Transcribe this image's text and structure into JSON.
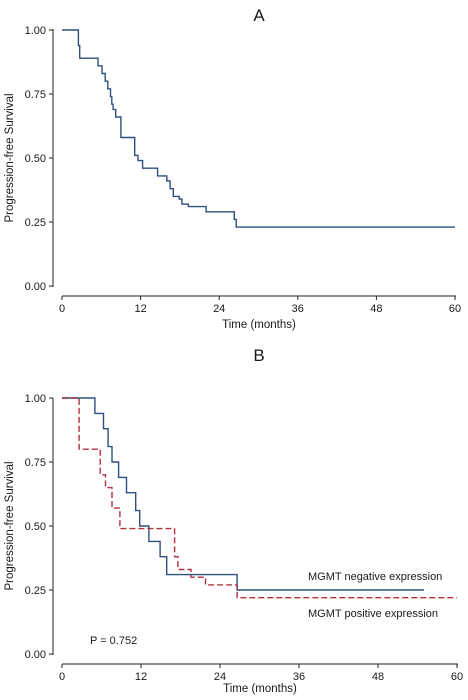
{
  "chart_data": [
    {
      "type": "line",
      "subtype": "kaplan-meier-step",
      "title": "A",
      "xlabel": "Time (months)",
      "ylabel": "Progression-free Survival",
      "xlim": [
        0,
        60
      ],
      "ylim": [
        0,
        1
      ],
      "xticks": [
        "0",
        "12",
        "24",
        "36",
        "48",
        "60"
      ],
      "yticks": [
        "0.00",
        "0.25",
        "0.50",
        "0.75",
        "1.00"
      ],
      "grid": false,
      "series": [
        {
          "color": "#2f4f7f",
          "dash": "solid",
          "x": [
            0,
            2.5,
            2.7,
            5.5,
            6.1,
            6.6,
            7.0,
            7.4,
            7.6,
            7.8,
            8.2,
            9.0,
            11.1,
            11.6,
            12.3,
            14.6,
            16.0,
            16.5,
            17.0,
            17.9,
            18.3,
            19.3,
            22.0,
            26.3,
            26.6,
            60
          ],
          "y": [
            1.0,
            0.94,
            0.89,
            0.86,
            0.83,
            0.8,
            0.77,
            0.74,
            0.71,
            0.69,
            0.66,
            0.58,
            0.51,
            0.49,
            0.46,
            0.43,
            0.41,
            0.38,
            0.35,
            0.34,
            0.32,
            0.31,
            0.29,
            0.26,
            0.23,
            0.23
          ]
        }
      ]
    },
    {
      "type": "line",
      "subtype": "kaplan-meier-step",
      "title": "B",
      "xlabel": "Time (months)",
      "ylabel": "Progression-free Survival",
      "xlim": [
        0,
        60
      ],
      "ylim": [
        0,
        1
      ],
      "xticks": [
        "0",
        "12",
        "24",
        "36",
        "48",
        "60"
      ],
      "yticks": [
        "0.00",
        "0.25",
        "0.50",
        "0.75",
        "1.00"
      ],
      "grid": false,
      "annotation": "P = 0.752",
      "series": [
        {
          "name": "MGMT negative expression",
          "color": "#2f4f7f",
          "dash": "solid",
          "x": [
            0,
            5.0,
            6.3,
            7.0,
            7.6,
            8.6,
            9.8,
            11.2,
            11.8,
            13.2,
            14.9,
            15.9,
            26.6,
            55
          ],
          "y": [
            1.0,
            0.94,
            0.88,
            0.81,
            0.75,
            0.69,
            0.63,
            0.56,
            0.5,
            0.44,
            0.38,
            0.31,
            0.25,
            0.25
          ]
        },
        {
          "name": "MGMT positive expression",
          "color": "#b03040",
          "dash": "dashed",
          "x": [
            0,
            2.6,
            5.8,
            6.6,
            7.6,
            8.8,
            11.5,
            17.1,
            17.6,
            19.6,
            21.8,
            26.6,
            60
          ],
          "y": [
            1.0,
            0.8,
            0.7,
            0.65,
            0.57,
            0.49,
            0.49,
            0.38,
            0.33,
            0.3,
            0.27,
            0.22,
            0.22
          ]
        }
      ]
    }
  ]
}
